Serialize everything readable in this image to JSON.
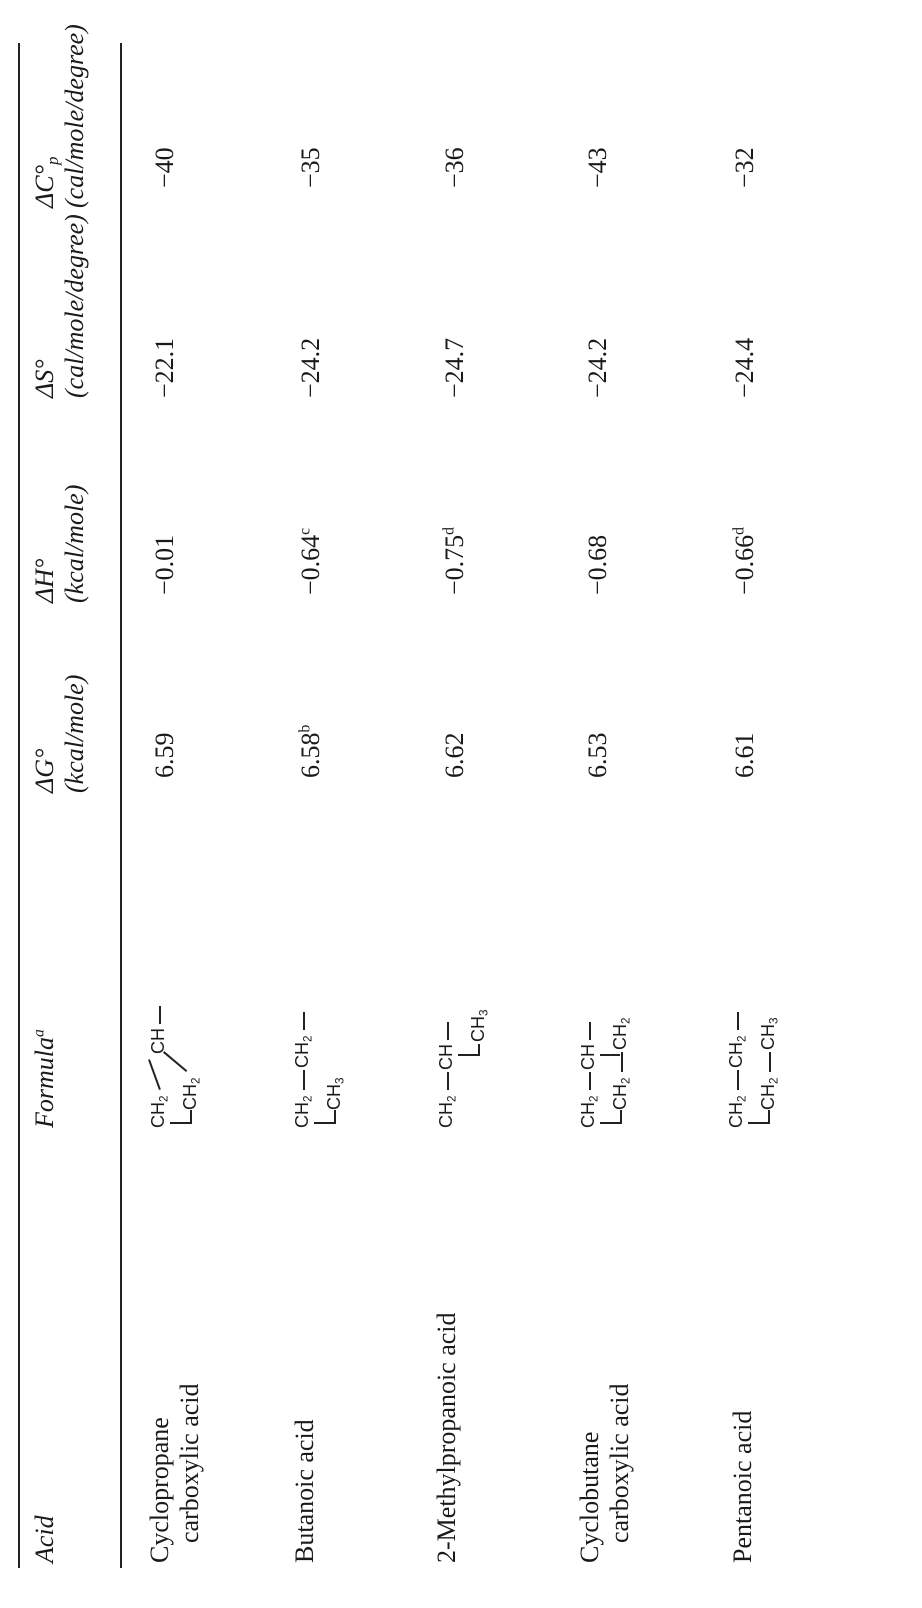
{
  "headers": {
    "acid": "Acid",
    "formula": "Formula",
    "formula_note": "a",
    "dG": "ΔG°",
    "dG_unit": "(kcal/mole)",
    "dH": "ΔH°",
    "dH_unit": "(kcal/mole)",
    "dS": "ΔS°",
    "dS_unit": "(cal/mole/degree)",
    "dCp": "ΔC°",
    "dCp_sub": "p",
    "dCp_unit": "(cal/mole/degree)"
  },
  "rows": [
    {
      "acid_line1": "Cyclopropane",
      "acid_line2": "carboxylic acid",
      "dG": "6.59",
      "dG_note": "",
      "dH": "−0.01",
      "dH_note": "",
      "dS": "−22.1",
      "dCp": "−40"
    },
    {
      "acid_line1": "Butanoic acid",
      "acid_line2": "",
      "dG": "6.58",
      "dG_note": "b",
      "dH": "−0.64",
      "dH_note": "c",
      "dS": "−24.2",
      "dCp": "−35"
    },
    {
      "acid_line1": "2-Methylpropanoic acid",
      "acid_line2": "",
      "dG": "6.62",
      "dG_note": "",
      "dH": "−0.75",
      "dH_note": "d",
      "dS": "−24.7",
      "dCp": "−36"
    },
    {
      "acid_line1": "Cyclobutane",
      "acid_line2": "carboxylic acid",
      "dG": "6.53",
      "dG_note": "",
      "dH": "−0.68",
      "dH_note": "",
      "dS": "−24.2",
      "dCp": "−43"
    },
    {
      "acid_line1": "Pentanoic acid",
      "acid_line2": "",
      "dG": "6.61",
      "dG_note": "",
      "dH": "−0.66",
      "dH_note": "d",
      "dS": "−24.4",
      "dCp": "−32"
    }
  ],
  "formula_text": {
    "ch2": "CH",
    "ch": "CH",
    "ch3": "CH",
    "sub2": "2",
    "sub3": "3",
    "dash": "—"
  }
}
